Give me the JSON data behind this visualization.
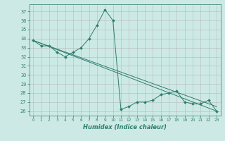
{
  "title": "",
  "xlabel": "Humidex (Indice chaleur)",
  "xlim": [
    -0.5,
    23.5
  ],
  "ylim": [
    25.5,
    37.8
  ],
  "yticks": [
    26,
    27,
    28,
    29,
    30,
    31,
    32,
    33,
    34,
    35,
    36,
    37
  ],
  "xticks": [
    0,
    1,
    2,
    3,
    4,
    5,
    6,
    7,
    8,
    9,
    10,
    11,
    12,
    13,
    14,
    15,
    16,
    17,
    18,
    19,
    20,
    21,
    22,
    23
  ],
  "line_color": "#2e7d6e",
  "bg_color": "#cce9e5",
  "grid_color": "#b8b8b8",
  "main_line": {
    "x": [
      0,
      1,
      2,
      3,
      4,
      5,
      6,
      7,
      8,
      9,
      10,
      11,
      12,
      13,
      14,
      15,
      16,
      17,
      18,
      19,
      20,
      21,
      22,
      23
    ],
    "y": [
      33.8,
      33.2,
      33.2,
      32.5,
      32.0,
      32.5,
      33.0,
      34.0,
      35.5,
      37.2,
      36.0,
      26.2,
      26.5,
      27.0,
      27.0,
      27.2,
      27.8,
      28.0,
      28.2,
      27.0,
      26.8,
      26.8,
      27.2,
      26.0
    ]
  },
  "trend_line1": {
    "x": [
      0,
      23
    ],
    "y": [
      33.8,
      26.0
    ]
  },
  "trend_line2": {
    "x": [
      0,
      23
    ],
    "y": [
      33.8,
      26.5
    ]
  }
}
